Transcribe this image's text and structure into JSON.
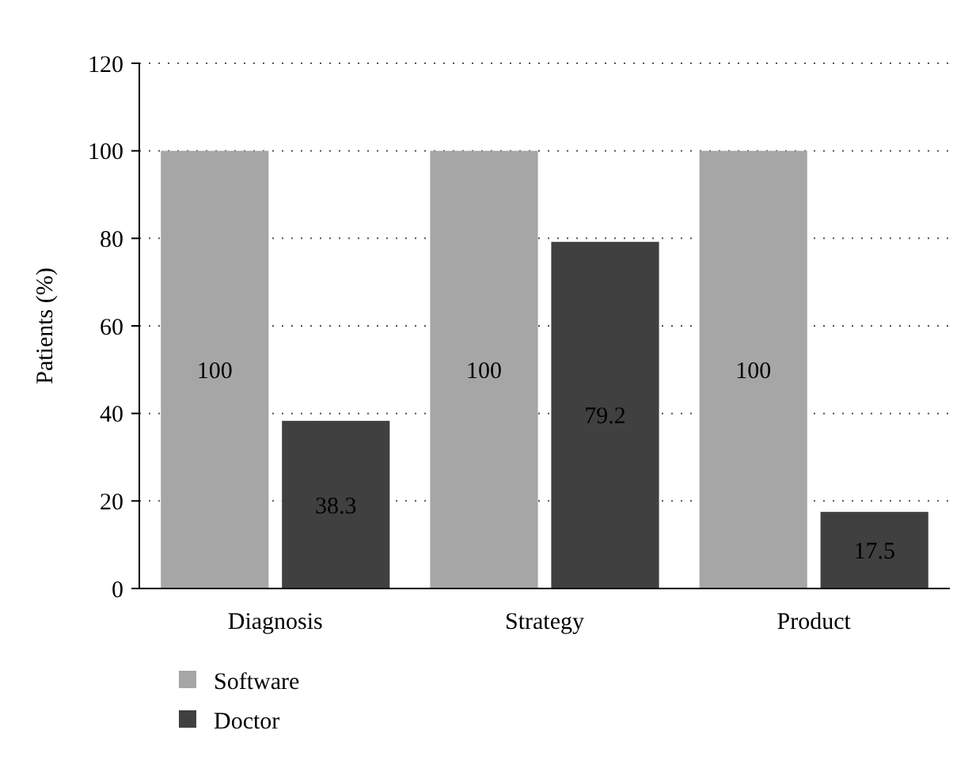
{
  "chart_data": {
    "type": "bar",
    "ylabel": "Patients (%)",
    "categories": [
      "Diagnosis",
      "Strategy",
      "Product"
    ],
    "series": [
      {
        "name": "Software",
        "color": "#a6a6a6",
        "values": [
          100,
          100,
          100
        ]
      },
      {
        "name": "Doctor",
        "color": "#404040",
        "values": [
          38.3,
          79.2,
          17.5
        ]
      }
    ],
    "ylim": [
      0,
      120
    ],
    "yticks": [
      0,
      20,
      40,
      60,
      80,
      100,
      120
    ],
    "grid": "y",
    "legend": "bottom left",
    "data_labels": true
  }
}
